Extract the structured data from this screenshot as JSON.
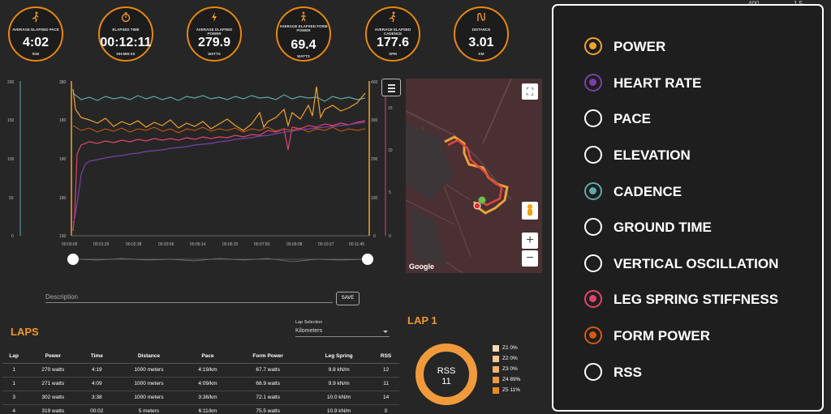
{
  "stats": [
    {
      "label": "AVERAGE ELAPSED PACE",
      "value": "4:02",
      "unit": "/KM",
      "icon": "runner-icon"
    },
    {
      "label": "ELAPSED TIME",
      "value": "00:12:11",
      "unit": "HH:MM:SS",
      "icon": "stopwatch-icon"
    },
    {
      "label": "AVERAGE ELAPSED POWER",
      "value": "279.9",
      "unit": "WATTS",
      "icon": "lightning-icon"
    },
    {
      "label": "AVERAGE ELAPSED FORM\nPOWER",
      "value": "69.4",
      "unit": "WATTS",
      "icon": "running-form-icon"
    },
    {
      "label": "AVERAGE ELAPSED CADENCE",
      "value": "177.6",
      "unit": "SPM",
      "icon": "runner-icon"
    },
    {
      "label": "DISTANCE",
      "value": "3.01",
      "unit": "KM",
      "icon": "route-icon"
    }
  ],
  "chart": {
    "left_axis_a": [
      "200",
      "150",
      "100",
      "50",
      "0"
    ],
    "left_axis_b": [
      "380",
      "180",
      "180",
      "180",
      "130"
    ],
    "right_axis_a": [
      "400",
      "300",
      "200",
      "100",
      "0"
    ],
    "right_axis_b": [
      "15",
      "10",
      "5",
      "0"
    ],
    "x_labels": [
      "00:00:00",
      "00:01:20",
      "00:02:38",
      "00:03:56",
      "00:05:14",
      "00:06:32",
      "00:07:50",
      "00:09:08",
      "00:10:27",
      "00:11:45"
    ],
    "colors": {
      "power": "#f0a32a",
      "heart_rate": "#7b3fa8",
      "cadence": "#5fa8a8",
      "leg_spring": "#e0456a",
      "form_power": "#d45a10"
    }
  },
  "map": {
    "attribution": "Google"
  },
  "description": {
    "placeholder": "Description",
    "save_label": "SAVE"
  },
  "laps": {
    "title": "LAPS",
    "selection_label": "Lap Selection",
    "selection_value": "Kilometers",
    "headers": [
      "Lap",
      "Power",
      "Time",
      "Distance",
      "Pace",
      "Form Power",
      "Leg Spring",
      "RSS"
    ],
    "rows": [
      [
        "1",
        "270 watts",
        "4:19",
        "1000 meters",
        "4:19/km",
        "67.7 watts",
        "9.8 kN/m",
        "12"
      ],
      [
        "1",
        "271 watts",
        "4:09",
        "1000 meters",
        "4:09/km",
        "68.9 watts",
        "9.9 kN/m",
        "11"
      ],
      [
        "3",
        "302 watts",
        "3:38",
        "1000 meters",
        "3:38/km",
        "72.1 watts",
        "10.0 kN/m",
        "14"
      ],
      [
        "4",
        "319 watts",
        "00:02",
        "5 meters",
        "6:11/km",
        "75.5 watts",
        "10.9 kN/m",
        "0"
      ]
    ]
  },
  "lap1": {
    "title": "LAP 1",
    "donut_label": "RSS",
    "donut_value": "11",
    "zones": [
      {
        "label": "Z1 0%",
        "color": "#f5d9b8"
      },
      {
        "label": "Z2 0%",
        "color": "#f5c894"
      },
      {
        "label": "Z3 0%",
        "color": "#f3b36a"
      },
      {
        "label": "Z4 89%",
        "color": "#f19a3c"
      },
      {
        "label": "Z5 11%",
        "color": "#ee8a1e"
      }
    ]
  },
  "metric_menu": {
    "options": [
      {
        "label": "POWER",
        "selected": true,
        "color": "#f0a32a"
      },
      {
        "label": "HEART RATE",
        "selected": true,
        "color": "#7b3fa8"
      },
      {
        "label": "PACE",
        "selected": false,
        "color": ""
      },
      {
        "label": "ELEVATION",
        "selected": false,
        "color": ""
      },
      {
        "label": "CADENCE",
        "selected": true,
        "color": "#5fa8a8"
      },
      {
        "label": "GROUND TIME",
        "selected": false,
        "color": ""
      },
      {
        "label": "VERTICAL OSCILLATION",
        "selected": false,
        "color": ""
      },
      {
        "label": "LEG SPRING STIFFNESS",
        "selected": true,
        "color": "#e0456a"
      },
      {
        "label": "FORM POWER",
        "selected": true,
        "color": "#d45a10"
      },
      {
        "label": "RSS",
        "selected": false,
        "color": ""
      }
    ]
  },
  "peek_text": [
    "400",
    "1.5"
  ]
}
